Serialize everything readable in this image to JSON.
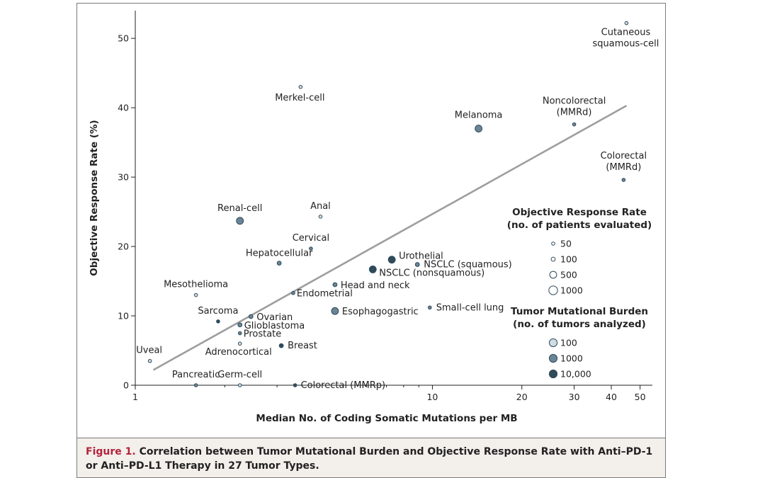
{
  "chart_data": {
    "type": "scatter",
    "xlabel": "Median No. of  Coding Somatic Mutations per MB",
    "ylabel": "Objective Response Rate (%)",
    "x_scale": "log",
    "xlim": [
      1,
      55
    ],
    "ylim": [
      0,
      54
    ],
    "x_ticks": [
      1,
      10,
      20,
      30,
      40,
      50
    ],
    "y_ticks": [
      0,
      10,
      20,
      30,
      40,
      50
    ],
    "trendline": {
      "x": [
        1.15,
        45
      ],
      "y": [
        2.2,
        40.3
      ],
      "color": "#9e9e9e"
    },
    "points": [
      {
        "label": "Cutaneous\nsquamous-cell",
        "x": 45,
        "y": 52.2,
        "n_patients": 50,
        "n_tumors": 100
      },
      {
        "label": "Merkel-cell",
        "x": 3.6,
        "y": 43,
        "n_patients": 50,
        "n_tumors": 100
      },
      {
        "label": "Noncolorectal\n(MMRd)",
        "x": 30,
        "y": 37.6,
        "n_patients": 50,
        "n_tumors": 1000
      },
      {
        "label": "Melanoma",
        "x": 14.3,
        "y": 37,
        "n_patients": 500,
        "n_tumors": 1000
      },
      {
        "label": "Colorectal\n(MMRd)",
        "x": 44,
        "y": 29.6,
        "n_patients": 50,
        "n_tumors": 1000
      },
      {
        "label": "Renal-cell",
        "x": 2.25,
        "y": 23.7,
        "n_patients": 500,
        "n_tumors": 1000
      },
      {
        "label": "Anal",
        "x": 4.2,
        "y": 24.3,
        "n_patients": 50,
        "n_tumors": 100
      },
      {
        "label": "Cervical",
        "x": 3.9,
        "y": 19.7,
        "n_patients": 50,
        "n_tumors": 1000
      },
      {
        "label": "Hepatocellular",
        "x": 3.05,
        "y": 17.6,
        "n_patients": 100,
        "n_tumors": 1000
      },
      {
        "label": "Urothelial",
        "x": 7.3,
        "y": 18.1,
        "n_patients": 500,
        "n_tumors": 10000
      },
      {
        "label": "NSCLC (squamous)",
        "x": 8.9,
        "y": 17.4,
        "n_patients": 100,
        "n_tumors": 1000
      },
      {
        "label": "NSCLC (nonsquamous)",
        "x": 6.3,
        "y": 16.7,
        "n_patients": 500,
        "n_tumors": 10000
      },
      {
        "label": "Head and neck",
        "x": 4.7,
        "y": 14.5,
        "n_patients": 100,
        "n_tumors": 1000
      },
      {
        "label": "Endometrial",
        "x": 3.4,
        "y": 13.3,
        "n_patients": 50,
        "n_tumors": 1000
      },
      {
        "label": "Mesothelioma",
        "x": 1.6,
        "y": 13,
        "n_patients": 50,
        "n_tumors": 100
      },
      {
        "label": "Small-cell lung",
        "x": 9.8,
        "y": 11.2,
        "n_patients": 50,
        "n_tumors": 1000
      },
      {
        "label": "Esophagogastric",
        "x": 4.7,
        "y": 10.7,
        "n_patients": 500,
        "n_tumors": 1000
      },
      {
        "label": "Sarcoma",
        "x": 1.9,
        "y": 9.2,
        "n_patients": 50,
        "n_tumors": 10000
      },
      {
        "label": "Ovarian",
        "x": 2.45,
        "y": 9.9,
        "n_patients": 100,
        "n_tumors": 1000
      },
      {
        "label": "Glioblastoma",
        "x": 2.25,
        "y": 8.7,
        "n_patients": 100,
        "n_tumors": 1000
      },
      {
        "label": "Prostate",
        "x": 2.25,
        "y": 7.5,
        "n_patients": 50,
        "n_tumors": 1000
      },
      {
        "label": "Adrenocortical",
        "x": 2.25,
        "y": 6.0,
        "n_patients": 50,
        "n_tumors": 100
      },
      {
        "label": "Breast",
        "x": 3.1,
        "y": 5.7,
        "n_patients": 100,
        "n_tumors": 10000
      },
      {
        "label": "Uveal",
        "x": 1.12,
        "y": 3.5,
        "n_patients": 50,
        "n_tumors": 100
      },
      {
        "label": "Pancreatic",
        "x": 1.6,
        "y": 0,
        "n_patients": 50,
        "n_tumors": 1000
      },
      {
        "label": "Germ-cell",
        "x": 2.25,
        "y": 0,
        "n_patients": 50,
        "n_tumors": 100
      },
      {
        "label": "Colorectal (MMRp)",
        "x": 3.45,
        "y": 0,
        "n_patients": 50,
        "n_tumors": 10000
      }
    ],
    "size_legend": {
      "title_line1": "Objective Response Rate",
      "title_line2": "(no. of patients evaluated)",
      "items": [
        {
          "label": "50",
          "n": 50
        },
        {
          "label": "100",
          "n": 100
        },
        {
          "label": "500",
          "n": 500
        },
        {
          "label": "1000",
          "n": 1000
        }
      ]
    },
    "color_legend": {
      "title_line1": "Tumor Mutational Burden",
      "title_line2": "(no. of tumors analyzed)",
      "items": [
        {
          "label": "100",
          "n": 100,
          "color": "#cfdce3"
        },
        {
          "label": "1000",
          "n": 1000,
          "color": "#6a8595"
        },
        {
          "label": "10,000",
          "n": 10000,
          "color": "#2f4a5b"
        }
      ]
    },
    "legend_placement": "right"
  },
  "caption": {
    "label": "Figure 1.",
    "text": "Correlation between Tumor Mutational Burden and Objective Response Rate with Anti–PD-1 or Anti–PD-L1 Therapy in 27 Tumor Types."
  }
}
